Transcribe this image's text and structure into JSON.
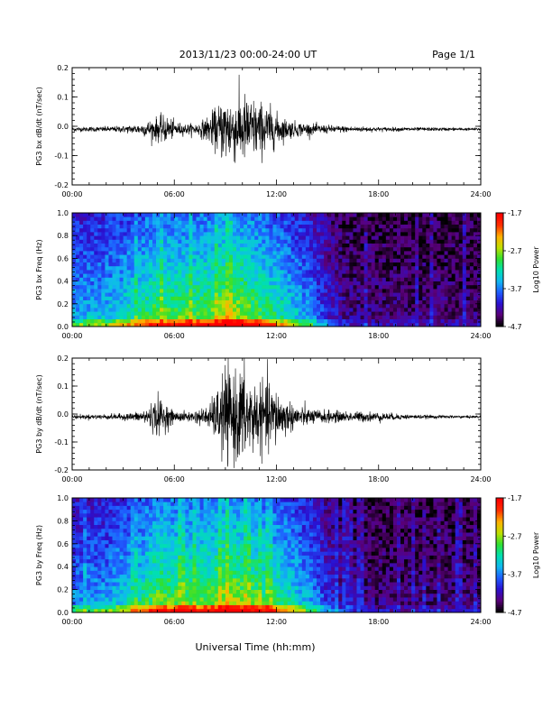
{
  "header": {
    "date_range": "2013/11/23  00:00-24:00 UT",
    "page_label": "Page 1/1"
  },
  "footer": {
    "xlabel": "Universal Time (hh:mm)"
  },
  "chart_data": [
    {
      "type": "line",
      "ylabel": "PG3 bx dB/dt (nT/sec)",
      "ylim": [
        -0.2,
        0.2
      ],
      "yticks": [
        "-0.2",
        "-0.1",
        "0.0",
        "0.1",
        "0.2"
      ],
      "xticks": [
        "00:00",
        "06:00",
        "12:00",
        "18:00",
        "24:00"
      ],
      "xlim_hours": [
        0,
        24
      ],
      "color": "#000000",
      "envelope": {
        "hours": [
          0,
          2,
          3,
          4,
          5,
          5.5,
          6,
          6.5,
          7,
          7.5,
          8,
          8.5,
          9,
          9.5,
          10,
          10.5,
          11,
          11.5,
          12,
          12.5,
          13,
          14,
          15,
          16,
          17,
          18,
          20,
          22,
          24
        ],
        "amplitude": [
          0.008,
          0.01,
          0.012,
          0.02,
          0.045,
          0.05,
          0.03,
          0.02,
          0.02,
          0.025,
          0.05,
          0.08,
          0.13,
          0.12,
          0.13,
          0.12,
          0.1,
          0.09,
          0.06,
          0.04,
          0.03,
          0.02,
          0.015,
          0.012,
          0.01,
          0.008,
          0.007,
          0.006,
          0.005
        ]
      }
    },
    {
      "type": "heatmap",
      "ylabel": "PG3 bx Freq (Hz)",
      "ylim": [
        0.0,
        1.0
      ],
      "yticks": [
        "0.0",
        "0.2",
        "0.4",
        "0.6",
        "0.8",
        "1.0"
      ],
      "xticks": [
        "00:00",
        "06:00",
        "12:00",
        "18:00",
        "24:00"
      ],
      "colorbar": {
        "label": "Log10 Power",
        "ticks": [
          "-1.7",
          "-2.7",
          "-3.7",
          "-4.7"
        ],
        "range": [
          -4.7,
          -1.7
        ],
        "colormap": [
          "#000000",
          "#5a007a",
          "#2a10d0",
          "#1f5cff",
          "#10b8f0",
          "#00e0b0",
          "#30e030",
          "#c0e000",
          "#ffb000",
          "#ff3000",
          "#ff0000"
        ]
      },
      "activity_hours": [
        0,
        2,
        4,
        5,
        6,
        8,
        9,
        10,
        12,
        13,
        14,
        15,
        16,
        18,
        24
      ],
      "activity_level": [
        0.45,
        0.5,
        0.62,
        0.72,
        0.7,
        0.72,
        0.82,
        0.78,
        0.62,
        0.52,
        0.42,
        0.25,
        0.15,
        0.12,
        0.12
      ]
    },
    {
      "type": "line",
      "ylabel": "PG3 by dB/dt (nT/sec)",
      "ylim": [
        -0.2,
        0.2
      ],
      "yticks": [
        "-0.2",
        "-0.1",
        "0.0",
        "0.1",
        "0.2"
      ],
      "xticks": [
        "00:00",
        "06:00",
        "12:00",
        "18:00",
        "24:00"
      ],
      "xlim_hours": [
        0,
        24
      ],
      "color": "#000000",
      "envelope": {
        "hours": [
          0,
          2,
          3,
          4,
          4.5,
          5,
          5.5,
          6,
          7,
          8,
          8.5,
          9,
          9.5,
          10,
          10.5,
          11,
          11.5,
          12,
          12.5,
          13,
          14,
          15,
          16,
          17,
          18,
          19,
          20,
          22,
          24
        ],
        "amplitude": [
          0.008,
          0.01,
          0.012,
          0.02,
          0.04,
          0.08,
          0.05,
          0.02,
          0.02,
          0.04,
          0.1,
          0.2,
          0.16,
          0.2,
          0.15,
          0.12,
          0.14,
          0.11,
          0.07,
          0.05,
          0.03,
          0.025,
          0.02,
          0.02,
          0.018,
          0.012,
          0.008,
          0.006,
          0.005
        ]
      }
    },
    {
      "type": "heatmap",
      "ylabel": "PG3 by Freq (Hz)",
      "ylim": [
        0.0,
        1.0
      ],
      "yticks": [
        "0.0",
        "0.2",
        "0.4",
        "0.6",
        "0.8",
        "1.0"
      ],
      "xticks": [
        "00:00",
        "06:00",
        "12:00",
        "18:00",
        "24:00"
      ],
      "colorbar": {
        "label": "Log10 Power",
        "ticks": [
          "-1.7",
          "-2.7",
          "-3.7",
          "-4.7"
        ],
        "range": [
          -4.7,
          -1.7
        ],
        "colormap": [
          "#000000",
          "#5a007a",
          "#2a10d0",
          "#1f5cff",
          "#10b8f0",
          "#00e0b0",
          "#30e030",
          "#c0e000",
          "#ffb000",
          "#ff3000",
          "#ff0000"
        ]
      },
      "activity_hours": [
        0,
        2,
        4,
        5,
        6,
        8,
        9,
        10,
        12,
        13,
        14,
        15,
        16,
        18,
        24
      ],
      "activity_level": [
        0.4,
        0.45,
        0.6,
        0.75,
        0.72,
        0.72,
        0.82,
        0.78,
        0.65,
        0.55,
        0.45,
        0.28,
        0.16,
        0.12,
        0.12
      ]
    }
  ]
}
